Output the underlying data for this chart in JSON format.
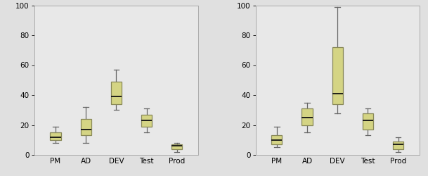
{
  "categories": [
    "PM",
    "AD",
    "DEV",
    "Test",
    "Prod"
  ],
  "left": {
    "whisker_low": [
      8,
      8,
      30,
      15,
      2
    ],
    "q1": [
      10,
      13,
      34,
      19,
      4
    ],
    "median": [
      12,
      17,
      39,
      23,
      6
    ],
    "q3": [
      15,
      24,
      49,
      27,
      7
    ],
    "whisker_high": [
      19,
      32,
      57,
      31,
      8
    ]
  },
  "right": {
    "whisker_low": [
      5,
      15,
      28,
      13,
      2
    ],
    "q1": [
      7,
      20,
      34,
      17,
      4
    ],
    "median": [
      10,
      25,
      41,
      23,
      7
    ],
    "q3": [
      13,
      31,
      72,
      28,
      9
    ],
    "whisker_high": [
      19,
      35,
      99,
      31,
      12
    ]
  },
  "ylim": [
    0,
    100
  ],
  "yticks": [
    0,
    20,
    40,
    60,
    80,
    100
  ],
  "box_color": "#d4d484",
  "box_edge_color": "#888858",
  "median_color": "#111111",
  "whisker_color": "#666666",
  "cap_color": "#666666",
  "background_color": "#e8e8e8",
  "fig_background": "#e0e0e0",
  "box_width": 0.35,
  "linewidth": 0.9,
  "tick_fontsize": 7.5
}
